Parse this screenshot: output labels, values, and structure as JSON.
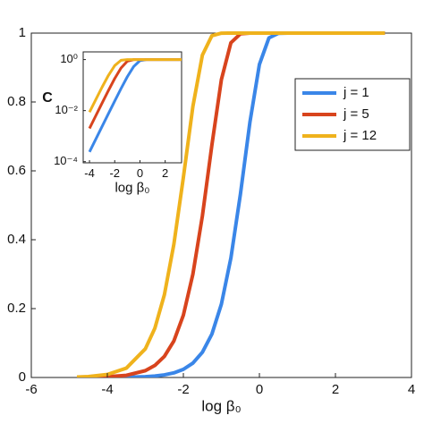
{
  "chart_data": [
    {
      "type": "line",
      "xlabel": "log β₀",
      "x": [
        -4.8,
        -4.5,
        -4,
        -3.5,
        -3,
        -2.75,
        -2.5,
        -2.25,
        -2,
        -1.75,
        -1.5,
        -1.25,
        -1,
        -0.75,
        -0.5,
        -0.25,
        0,
        0.25,
        0.5,
        0.75,
        1,
        1.5,
        2,
        2.5,
        3,
        3.3
      ],
      "series": [
        {
          "name": "j = 1",
          "color": "#3a86e8",
          "values": [
            4e-05,
            8e-05,
            0.00024,
            0.00076,
            0.0024,
            0.0043,
            0.0076,
            0.0134,
            0.0237,
            0.0418,
            0.0731,
            0.126,
            0.213,
            0.347,
            0.532,
            0.741,
            0.909,
            0.986,
            0.9995,
            1,
            1,
            1,
            1,
            1,
            1,
            1
          ]
        },
        {
          "name": "j = 5",
          "color": "#d8441d",
          "values": [
            0.0003,
            0.0006,
            0.002,
            0.0063,
            0.0198,
            0.035,
            0.0613,
            0.106,
            0.181,
            0.3,
            0.469,
            0.675,
            0.865,
            0.972,
            0.998,
            1,
            1,
            1,
            1,
            1,
            1,
            1,
            1,
            1,
            1,
            1
          ]
        },
        {
          "name": "j = 12",
          "color": "#efb21c",
          "values": [
            0.0014,
            0.0027,
            0.0087,
            0.0271,
            0.0833,
            0.143,
            0.24,
            0.387,
            0.581,
            0.787,
            0.936,
            0.9925,
            0.9998,
            1,
            1,
            1,
            1,
            1,
            1,
            1,
            1,
            1,
            1,
            1,
            1,
            1
          ]
        }
      ],
      "xlim": [
        -6,
        4
      ],
      "xticks": [
        -6,
        -4,
        -2,
        0,
        2,
        4
      ],
      "ylim": [
        0,
        1
      ],
      "yticks": [
        0,
        0.2,
        0.4,
        0.6,
        0.8,
        1
      ],
      "grid": false,
      "legend": true
    },
    {
      "type": "line",
      "xlabel": "log β₀",
      "ylabel": "C",
      "x": [
        -4,
        -3.5,
        -3,
        -2.5,
        -2,
        -1.5,
        -1,
        -0.5,
        0,
        0.5,
        1,
        2,
        3,
        3.3
      ],
      "series": [
        {
          "name": "j = 1",
          "color": "#3a86e8",
          "values": [
            0.00024,
            0.00076,
            0.0024,
            0.0076,
            0.0237,
            0.0731,
            0.213,
            0.532,
            0.909,
            0.9995,
            1,
            1,
            1,
            1
          ]
        },
        {
          "name": "j = 5",
          "color": "#d8441d",
          "values": [
            0.002,
            0.0063,
            0.0198,
            0.0613,
            0.181,
            0.469,
            0.865,
            0.998,
            1,
            1,
            1,
            1,
            1,
            1
          ]
        },
        {
          "name": "j = 12",
          "color": "#efb21c",
          "values": [
            0.0087,
            0.0271,
            0.0833,
            0.24,
            0.581,
            0.936,
            0.9998,
            1,
            1,
            1,
            1,
            1,
            1,
            1
          ]
        }
      ],
      "xlim": [
        -4.5,
        3.3
      ],
      "xticks": [
        -4,
        -2,
        0,
        2
      ],
      "ylim": [
        9e-05,
        2
      ],
      "ylog": true,
      "yticks": [
        {
          "value": 0.0001,
          "label": "10⁻⁴"
        },
        {
          "value": 0.01,
          "label": "10⁻²"
        },
        {
          "value": 1,
          "label": "10⁰"
        }
      ],
      "grid": false,
      "legend": false
    }
  ]
}
